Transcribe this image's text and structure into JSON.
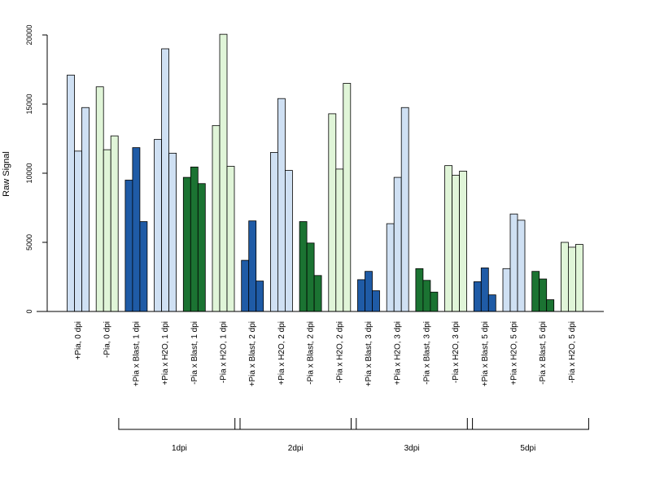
{
  "chart_data": {
    "type": "bar",
    "title": "",
    "xlabel": "",
    "ylabel": "Raw Signal",
    "ylim": [
      0,
      20000
    ],
    "yticks": [
      0,
      5000,
      10000,
      15000,
      20000
    ],
    "bars_per_group": 3,
    "grid": false,
    "legend": "none",
    "colors": {
      "light_blue": "#cfe0f3",
      "light_green": "#e0f5d8",
      "dark_blue": "#1f5ba6",
      "dark_green": "#1b7332",
      "edge": "#000000"
    },
    "categories": [
      {
        "label": "+Pia, 0 dpi",
        "color": "light_blue",
        "values": [
          17100,
          11600,
          14750
        ]
      },
      {
        "label": "-Pia, 0 dpi",
        "color": "light_green",
        "values": [
          16250,
          11700,
          12700
        ]
      },
      {
        "label": "+Pia x Blast, 1 dpi",
        "color": "dark_blue",
        "values": [
          9500,
          11850,
          6500
        ]
      },
      {
        "label": "+Pia x H2O, 1 dpi",
        "color": "light_blue",
        "values": [
          12450,
          19000,
          11450
        ]
      },
      {
        "label": "-Pia x Blast, 1 dpi",
        "color": "dark_green",
        "values": [
          9700,
          10450,
          9250
        ]
      },
      {
        "label": "-Pia x H2O, 1 dpi",
        "color": "light_green",
        "values": [
          13450,
          20050,
          10500
        ]
      },
      {
        "label": "+Pia x Blast, 2 dpi",
        "color": "dark_blue",
        "values": [
          3700,
          6550,
          2200
        ]
      },
      {
        "label": "+Pia x H2O, 2 dpi",
        "color": "light_blue",
        "values": [
          11500,
          15400,
          10200
        ]
      },
      {
        "label": "-Pia x Blast, 2 dpi",
        "color": "dark_green",
        "values": [
          6500,
          4950,
          2600
        ]
      },
      {
        "label": "-Pia x H2O, 2 dpi",
        "color": "light_green",
        "values": [
          14300,
          10300,
          16500
        ]
      },
      {
        "label": "+Pia x Blast, 3 dpi",
        "color": "dark_blue",
        "values": [
          2300,
          2900,
          1500
        ]
      },
      {
        "label": "+Pia x H2O, 3 dpi",
        "color": "light_blue",
        "values": [
          6350,
          9700,
          14750
        ]
      },
      {
        "label": "-Pia x Blast, 3 dpi",
        "color": "dark_green",
        "values": [
          3100,
          2250,
          1400
        ]
      },
      {
        "label": "-Pia x H2O, 3 dpi",
        "color": "light_green",
        "values": [
          10550,
          9850,
          10150
        ]
      },
      {
        "label": "+Pia x Blast, 5 dpi",
        "color": "dark_blue",
        "values": [
          2150,
          3150,
          1200
        ]
      },
      {
        "label": "+Pia x H2O, 5 dpi",
        "color": "light_blue",
        "values": [
          3100,
          7050,
          6600
        ]
      },
      {
        "label": "-Pia x Blast, 5 dpi",
        "color": "dark_green",
        "values": [
          2900,
          2350,
          850
        ]
      },
      {
        "label": "-Pia x H2O, 5 dpi",
        "color": "light_green",
        "values": [
          5000,
          4650,
          4850
        ]
      }
    ],
    "group_brackets": [
      {
        "label": "1dpi",
        "from": 2,
        "to": 5
      },
      {
        "label": "2dpi",
        "from": 6,
        "to": 9
      },
      {
        "label": "3dpi",
        "from": 10,
        "to": 13
      },
      {
        "label": "5dpi",
        "from": 14,
        "to": 17
      }
    ]
  }
}
